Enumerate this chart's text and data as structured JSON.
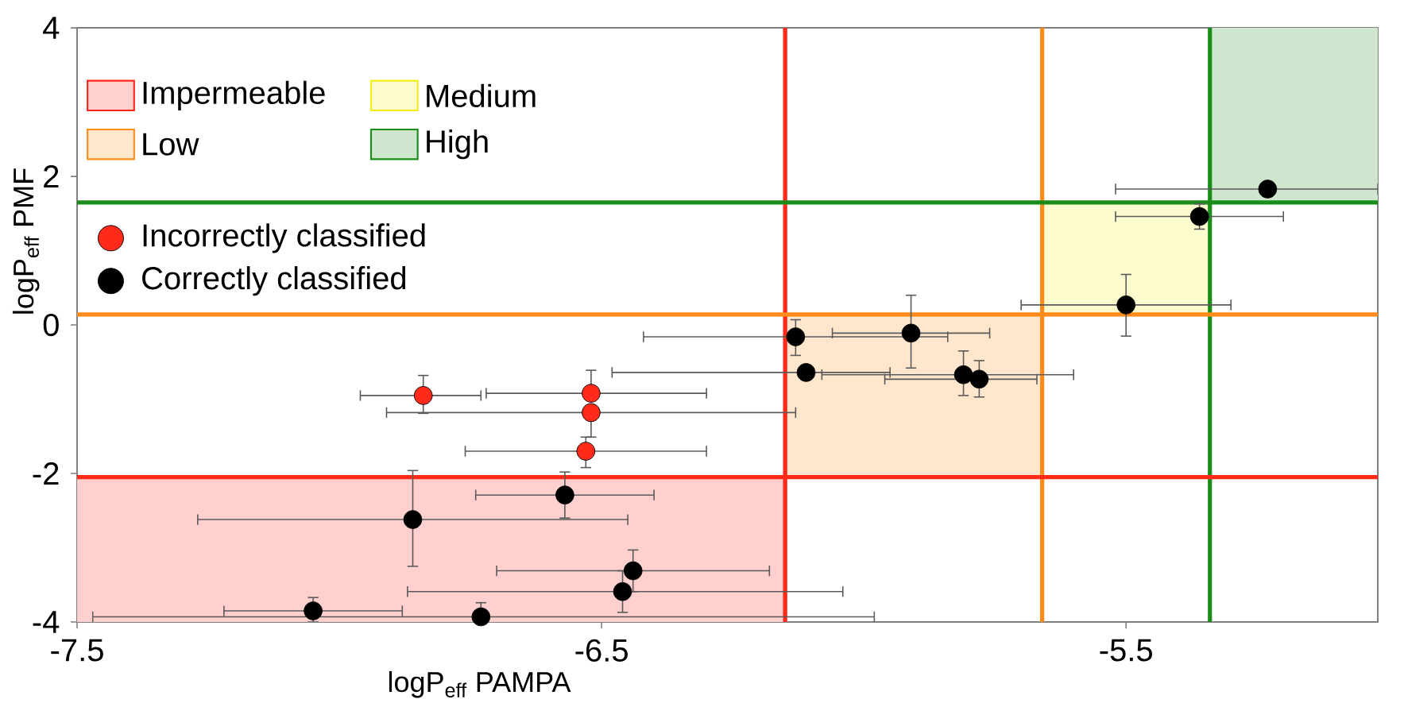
{
  "chart_data": {
    "type": "scatter",
    "xlabel": "logP$_{eff}$ PAMPA",
    "ylabel": "logP$_{eff}$ PMF",
    "xlim": [
      -7.5,
      -5.02
    ],
    "ylim": [
      -4,
      4
    ],
    "xticks": [
      -7.5,
      -6.5,
      -5.5
    ],
    "yticks": [
      -4,
      -2,
      0,
      2,
      4
    ],
    "grid": false,
    "legend": "top left",
    "marker": "circle",
    "ref_lines": [
      {
        "axis": "x",
        "value": -6.15,
        "color": "#ff2a1a"
      },
      {
        "axis": "x",
        "value": -5.66,
        "color": "#ff8c1a"
      },
      {
        "axis": "x",
        "value": -5.34,
        "color": "#1a8c1a"
      },
      {
        "axis": "y",
        "value": -2.05,
        "color": "#ff2a1a"
      },
      {
        "axis": "y",
        "value": 0.14,
        "color": "#ff8c1a"
      },
      {
        "axis": "y",
        "value": 1.65,
        "color": "#1a8c1a"
      }
    ],
    "series": [
      {
        "type": "line",
        "name": "Impermeable",
        "color": "#ffd0cd",
        "x": [
          -7.5,
          -6.15
        ],
        "values": [
          null,
          null
        ],
        "lower": [
          -4,
          -4
        ],
        "upper": [
          -2.05,
          -2.05
        ]
      },
      {
        "type": "line",
        "name": "Low",
        "color": "#ffe6cd",
        "x": [
          -6.15,
          -5.66
        ],
        "values": [
          null,
          null
        ],
        "lower": [
          -2.05,
          -2.05
        ],
        "upper": [
          0.14,
          0.14
        ]
      },
      {
        "type": "line",
        "name": "Medium",
        "color": "#fcfbcd",
        "x": [
          -5.66,
          -5.34
        ],
        "values": [
          null,
          null
        ],
        "lower": [
          0.14,
          0.14
        ],
        "upper": [
          1.65,
          1.65
        ]
      },
      {
        "type": "line",
        "name": "High",
        "color": "#cde6cd",
        "x": [
          -5.34,
          -5.02
        ],
        "values": [
          null,
          null
        ],
        "lower": [
          1.65,
          1.65
        ],
        "upper": [
          4,
          4
        ]
      },
      {
        "name": "Incorrectly classified",
        "color": "#ff2a1a",
        "x": [
          -6.84,
          -6.52,
          -6.52,
          -6.53
        ],
        "values": [
          -0.95,
          -0.92,
          -1.18,
          -1.7
        ],
        "xerrors": [
          [
            -6.96,
            -6.73
          ],
          [
            -6.72,
            -6.3
          ],
          [
            -6.91,
            -6.13
          ],
          [
            -6.76,
            -6.3
          ]
        ],
        "errors": [
          [
            -1.19,
            -0.68
          ],
          [
            -0.92,
            -0.61
          ],
          [
            -1.51,
            -1.18
          ],
          [
            -1.92,
            -1.51
          ]
        ]
      },
      {
        "name": "Correctly classified",
        "color": "#000000",
        "x": [
          -6.57,
          -6.86,
          -6.44,
          -6.46,
          -7.05,
          -6.73,
          -5.23,
          -5.36,
          -5.5,
          -6.13,
          -5.91,
          -6.11,
          -5.81,
          -5.78
        ],
        "values": [
          -2.29,
          -2.62,
          -3.31,
          -3.59,
          -3.85,
          -3.93,
          1.83,
          1.46,
          0.27,
          -0.16,
          -0.11,
          -0.64,
          -0.67,
          -0.73
        ],
        "xerrors": [
          [
            -6.74,
            -6.4
          ],
          [
            -7.27,
            -6.45
          ],
          [
            -6.7,
            -6.18
          ],
          [
            -6.87,
            -6.04
          ],
          [
            -7.22,
            -6.88
          ],
          [
            -7.47,
            -5.98
          ],
          [
            -5.52,
            -5.02
          ],
          [
            -5.52,
            -5.2
          ],
          [
            -5.7,
            -5.3
          ],
          [
            -6.42,
            -5.84
          ],
          [
            -6.06,
            -5.76
          ],
          [
            -6.48,
            -5.95
          ],
          [
            -6.08,
            -5.6
          ],
          [
            -5.96,
            -5.67
          ]
        ],
        "errors": [
          [
            -2.6,
            -1.98
          ],
          [
            -3.25,
            -1.96
          ],
          [
            -3.59,
            -3.03
          ],
          [
            -3.87,
            -3.31
          ],
          [
            -4,
            -3.67
          ],
          [
            -3.93,
            -3.74
          ],
          null,
          [
            1.29,
            1.63
          ],
          [
            -0.15,
            0.68
          ],
          [
            -0.41,
            0.07
          ],
          [
            -0.58,
            0.4
          ],
          null,
          [
            -0.95,
            -0.35
          ],
          [
            -0.97,
            -0.48
          ]
        ]
      }
    ]
  }
}
